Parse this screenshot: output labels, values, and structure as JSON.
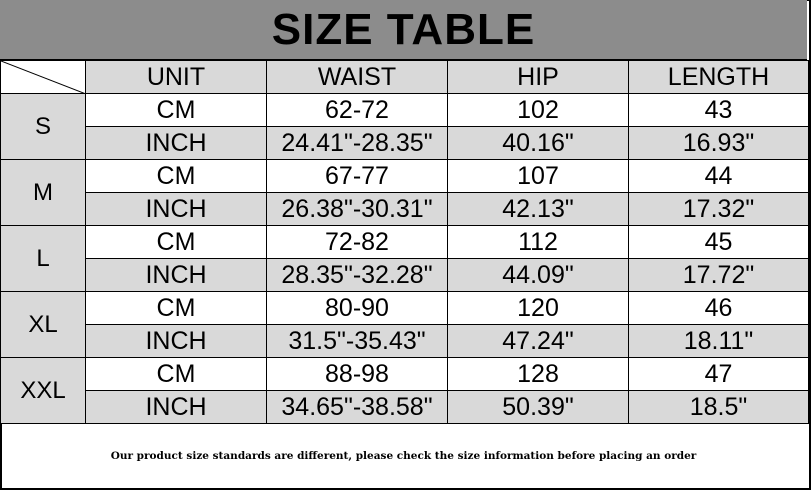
{
  "title": "SIZE TABLE",
  "columns": [
    "UNIT",
    "WAIST",
    "HIP",
    "LENGTH"
  ],
  "rows": [
    {
      "size": "S",
      "cm": {
        "unit": "CM",
        "waist": "62-72",
        "hip": "102",
        "length": "43"
      },
      "inch": {
        "unit": "INCH",
        "waist": "24.41\"-28.35\"",
        "hip": "40.16\"",
        "length": "16.93\""
      }
    },
    {
      "size": "M",
      "cm": {
        "unit": "CM",
        "waist": "67-77",
        "hip": "107",
        "length": "44"
      },
      "inch": {
        "unit": "INCH",
        "waist": "26.38\"-30.31\"",
        "hip": "42.13\"",
        "length": "17.32\""
      }
    },
    {
      "size": "L",
      "cm": {
        "unit": "CM",
        "waist": "72-82",
        "hip": "112",
        "length": "45"
      },
      "inch": {
        "unit": "INCH",
        "waist": "28.35\"-32.28\"",
        "hip": "44.09\"",
        "length": "17.72\""
      }
    },
    {
      "size": "XL",
      "cm": {
        "unit": "CM",
        "waist": "80-90",
        "hip": "120",
        "length": "46"
      },
      "inch": {
        "unit": "INCH",
        "waist": "31.5\"-35.43\"",
        "hip": "47.24\"",
        "length": "18.11\""
      }
    },
    {
      "size": "XXL",
      "cm": {
        "unit": "CM",
        "waist": "88-98",
        "hip": "128",
        "length": "47"
      },
      "inch": {
        "unit": "INCH",
        "waist": "34.65\"-38.58\"",
        "hip": "50.39\"",
        "length": "18.5\""
      }
    }
  ],
  "footer_note": "Our product size standards are different, please check the size information before placing an order",
  "colors": {
    "title_bg": "#8c8c8c",
    "shaded_cell": "#d9d9d9",
    "border": "#000000"
  }
}
